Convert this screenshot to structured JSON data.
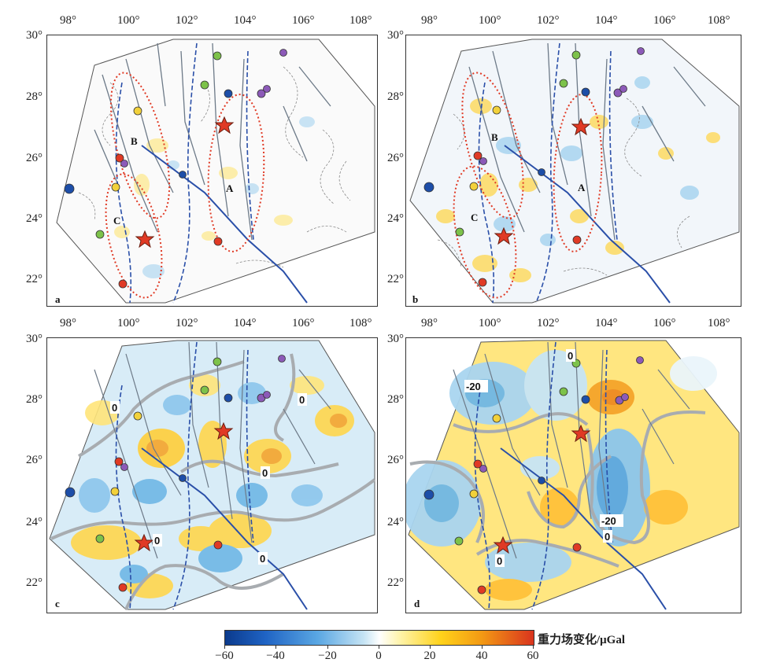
{
  "panels": {
    "a": {
      "label": "a",
      "zones": [
        "A",
        "B",
        "C"
      ]
    },
    "b": {
      "label": "b",
      "zones": [
        "A",
        "B",
        "C"
      ]
    },
    "c": {
      "label": "c",
      "contours": [
        "0",
        "0",
        "0",
        "0",
        "0"
      ]
    },
    "d": {
      "label": "d",
      "contours": [
        "0",
        "-20",
        "-20",
        "0",
        "0"
      ]
    }
  },
  "axes": {
    "x_ticks": [
      "98°",
      "100°",
      "102°",
      "104°",
      "106°",
      "108°"
    ],
    "y_ticks": [
      "30°",
      "28°",
      "26°",
      "24°",
      "22°"
    ]
  },
  "colorbar": {
    "title": "重力场变化/μGal",
    "ticks": [
      "−60",
      "−40",
      "−20",
      "0",
      "20",
      "40",
      "60"
    ],
    "range": [
      -60,
      60
    ]
  }
}
